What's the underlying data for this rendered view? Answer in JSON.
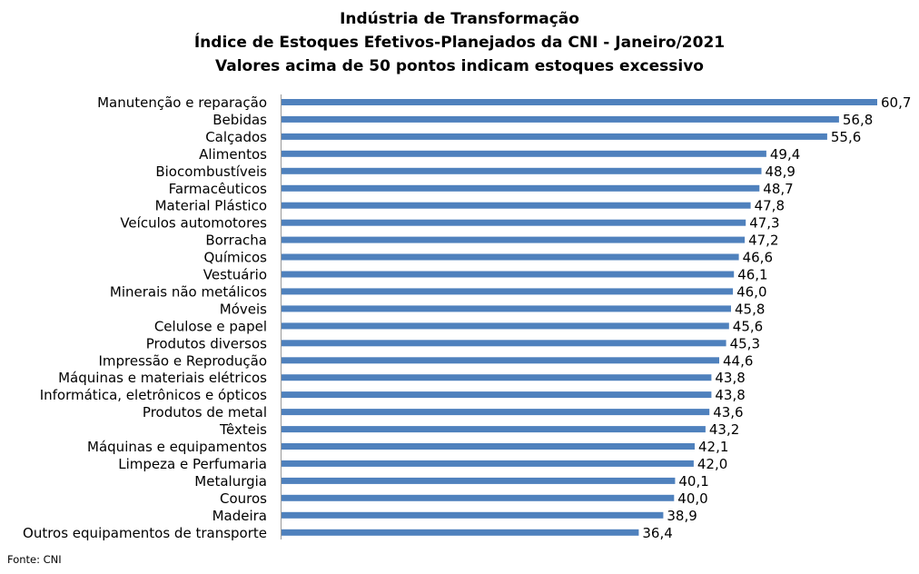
{
  "chart_data": {
    "type": "bar",
    "orientation": "horizontal",
    "title_lines": [
      "Indústria de Transformação",
      "Índice de Estoques Efetivos-Planejados da CNI - Janeiro/2021",
      "Valores acima de 50 pontos indicam estoques excessivo"
    ],
    "categories": [
      "Manutenção e reparação",
      "Bebidas",
      "Calçados",
      "Alimentos",
      "Biocombustíveis",
      "Farmacêuticos",
      "Material Plástico",
      "Veículos automotores",
      "Borracha",
      "Químicos",
      "Vestuário",
      "Minerais não metálicos",
      "Móveis",
      "Celulose e papel",
      "Produtos diversos",
      "Impressão e Reprodução ",
      "Máquinas e materiais elétricos",
      "Informática, eletrônicos e ópticos",
      "Produtos de metal",
      "Têxteis",
      "Máquinas e equipamentos",
      "Limpeza e Perfumaria",
      "Metalurgia",
      "Couros",
      "Madeira",
      "Outros equipamentos de transporte"
    ],
    "values": [
      60.7,
      56.8,
      55.6,
      49.4,
      48.9,
      48.7,
      47.8,
      47.3,
      47.2,
      46.6,
      46.1,
      46.0,
      45.8,
      45.6,
      45.3,
      44.6,
      43.8,
      43.8,
      43.6,
      43.2,
      42.1,
      42.0,
      40.1,
      40.0,
      38.9,
      36.4
    ],
    "data_labels": [
      "60,7",
      "56,8",
      "55,6",
      "49,4",
      "48,9",
      "48,7",
      "47,8",
      "47,3",
      "47,2",
      "46,6",
      "46,1",
      "46,0",
      "45,8",
      "45,6",
      "45,3",
      "44,6",
      "43,8",
      "43,8",
      "43,6",
      "43,2",
      "42,1",
      "42,0",
      "40,1",
      "40,0",
      "38,9",
      "36,4"
    ],
    "xlim": [
      0,
      60.7
    ],
    "grid": false,
    "bar_color": "#4f81bd"
  },
  "source": "Fonte: CNI"
}
